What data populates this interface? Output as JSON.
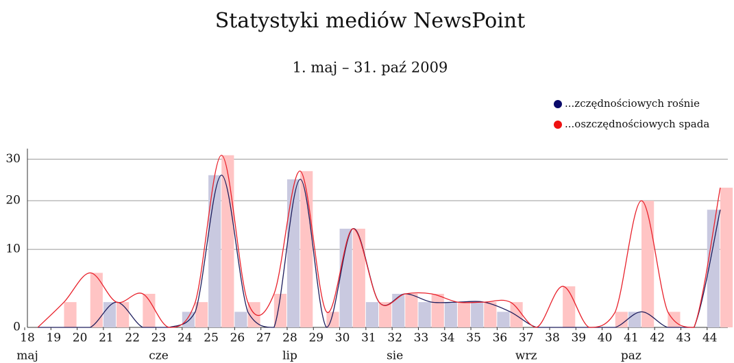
{
  "chart_data": {
    "type": "bar",
    "title": "Statystyki mediów NewsPoint",
    "subtitle": "1. maj – 31. paź 2009",
    "categories": [
      "18",
      "19",
      "20",
      "21",
      "22",
      "23",
      "24",
      "25",
      "26",
      "27",
      "28",
      "29",
      "30",
      "31",
      "32",
      "33",
      "34",
      "35",
      "36",
      "37",
      "38",
      "39",
      "40",
      "41",
      "42",
      "43",
      "44"
    ],
    "month_labels": [
      "maj",
      null,
      null,
      null,
      null,
      "cze",
      null,
      null,
      null,
      null,
      "lip",
      null,
      null,
      null,
      "sie",
      null,
      null,
      null,
      null,
      "wrz",
      null,
      null,
      null,
      "paz",
      null,
      null,
      null
    ],
    "series": [
      {
        "name": "...zczędnościowych rośnie",
        "color": "#c9c9e0",
        "line_color": "#1c1c5c",
        "marker_color": "#0a0a6a",
        "values": [
          0,
          0,
          0,
          2,
          0,
          0,
          1,
          26,
          1,
          0,
          25,
          0,
          14,
          2,
          3,
          2,
          2,
          2,
          1,
          0,
          0,
          0,
          0,
          1,
          0,
          0,
          18
        ]
      },
      {
        "name": "...oszczędnościowych spada",
        "color": "#ffc4c4",
        "line_color": "#e8202a",
        "marker_color": "#ee1111",
        "values": [
          0,
          2,
          6,
          2,
          3,
          0,
          2,
          31,
          2,
          3,
          27,
          1,
          14,
          2,
          3,
          3,
          2,
          2,
          2,
          0,
          4,
          0,
          1,
          20,
          1,
          0,
          23
        ]
      }
    ],
    "ylim": [
      0,
      32
    ],
    "yticks": [
      0,
      10,
      20,
      30
    ],
    "yscale": "power",
    "yexponent": 0.7,
    "grid": true,
    "legend": "top-right"
  }
}
